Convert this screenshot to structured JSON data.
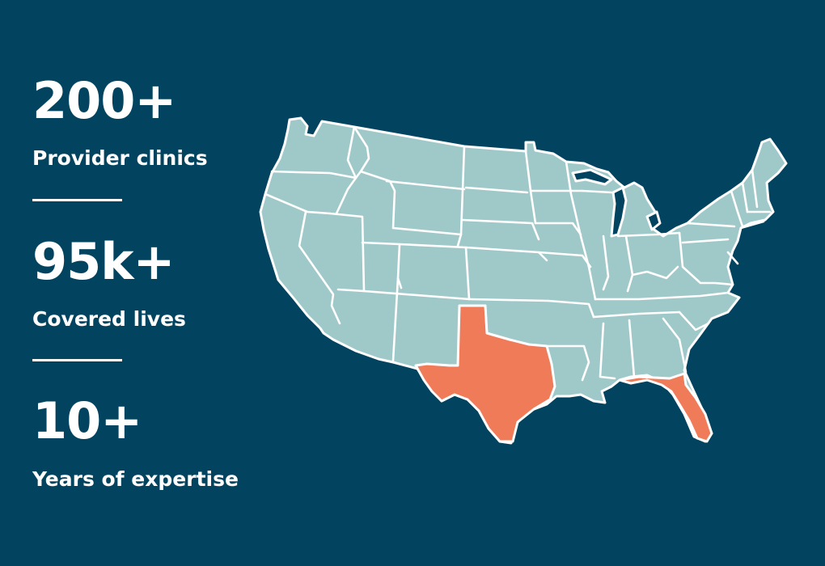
{
  "stats": [
    {
      "value": "200+",
      "label": "Provider clinics"
    },
    {
      "value": "95k+",
      "label": "Covered lives"
    },
    {
      "value": "10+",
      "label": "Years of expertise"
    }
  ],
  "map": {
    "highlighted_states": [
      "Texas",
      "Florida"
    ],
    "colors": {
      "background": "#02445F",
      "base_state": "#9FC8C9",
      "highlight_state": "#F07B58",
      "border": "#FFFFFF"
    }
  }
}
